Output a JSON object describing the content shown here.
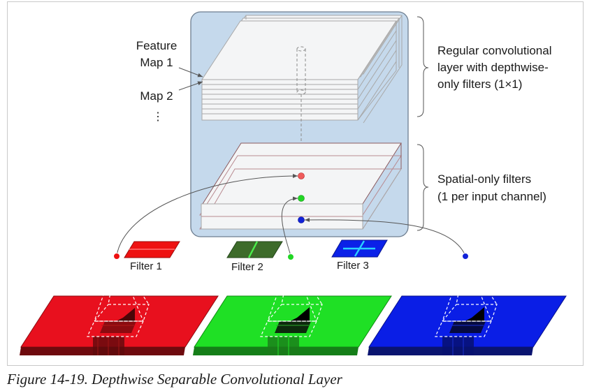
{
  "labels": {
    "feature_map_1_line1": "Feature",
    "feature_map_1_line2": "Map 1",
    "feature_map_2": "Map 2",
    "ellipsis": "⋮",
    "regular_layer": [
      "Regular convolutional",
      "layer with depthwise-",
      "only filters (1×1)"
    ],
    "spatial_layer": [
      "Spatial-only filters",
      "(1 per input channel)"
    ],
    "filter_1": "Filter 1",
    "filter_2": "Filter 2",
    "filter_3": "Filter 3"
  },
  "caption": "Figure 14-19. Depthwise Separable Convolutional Layer",
  "colors": {
    "panel": "#c5d9ec",
    "red_channel": "#e8101e",
    "green_channel": "#1fe025",
    "blue_channel": "#0a1ee6",
    "filter_red": "#ee1111",
    "filter_green": "#3d6b2a",
    "filter_blue": "#0b21e8"
  }
}
